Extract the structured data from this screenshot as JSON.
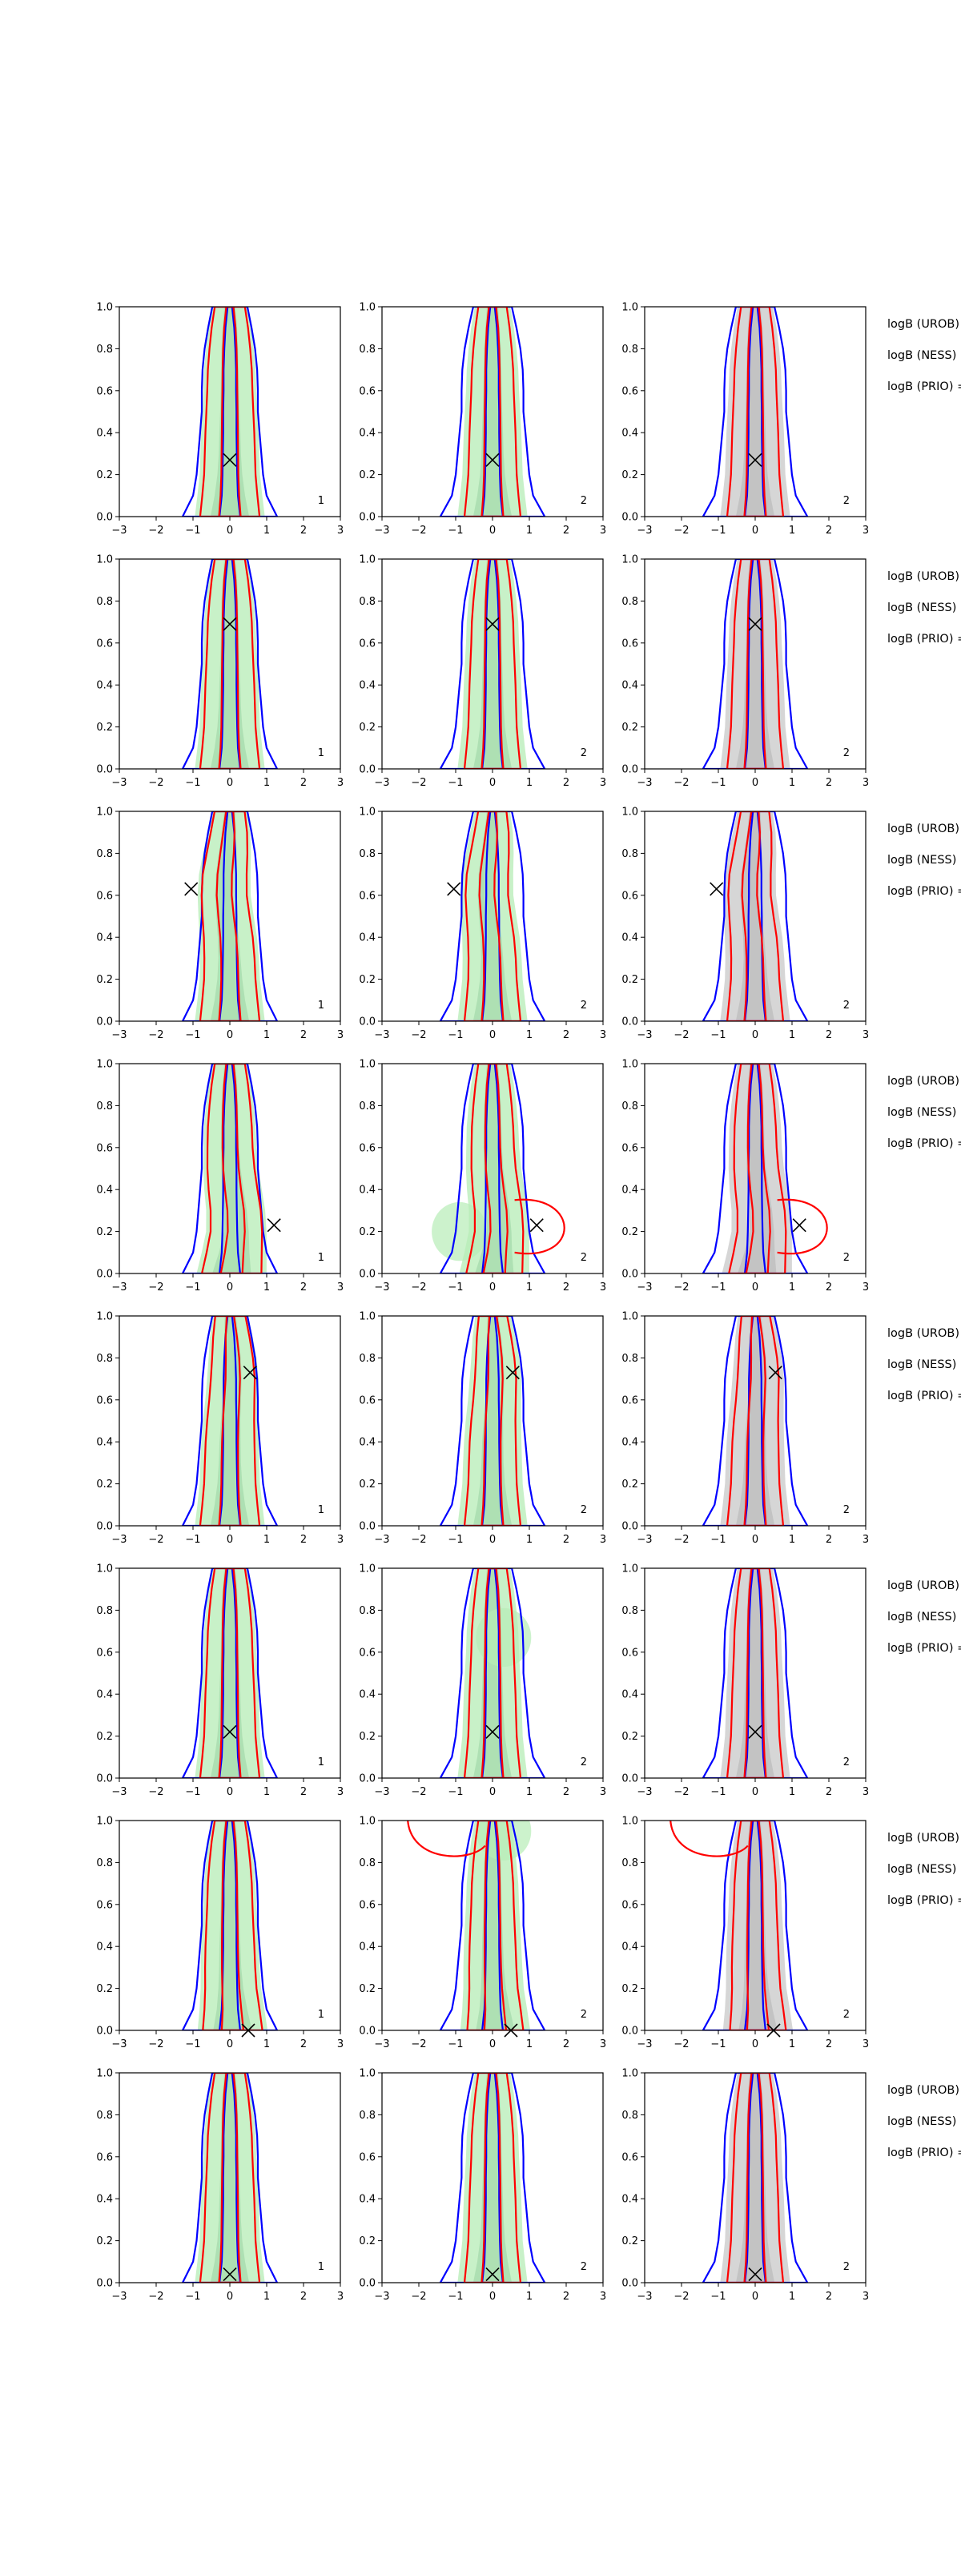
{
  "chart_data": {
    "type": "contour",
    "xlim": [
      -3,
      3
    ],
    "ylim": [
      0,
      1
    ],
    "x_ticks": [
      "−3",
      "−2",
      "−1",
      "0",
      "1",
      "2",
      "3"
    ],
    "y_ticks": [
      "0.0",
      "0.2",
      "0.4",
      "0.6",
      "0.8",
      "1.0"
    ],
    "grid": false,
    "colors": {
      "green_fill": "#b6ecb6",
      "gray_fill": "#c8c8c8",
      "blue_contour": "#0000ff",
      "red_contour": "#ff0000",
      "marker": "#000000"
    },
    "side_labels": [
      "logB (UROB) =",
      "logB (NESS) =",
      "logB (PRIO) ="
    ],
    "rows": [
      {
        "marker": [
          0.0,
          0.27
        ],
        "corner_labels": [
          "1",
          "2",
          "2"
        ]
      },
      {
        "marker": [
          0.0,
          0.69
        ],
        "corner_labels": [
          "1",
          "2",
          "2"
        ]
      },
      {
        "marker": [
          -1.05,
          0.63
        ],
        "corner_labels": [
          "1",
          "2",
          "2"
        ]
      },
      {
        "marker": [
          1.2,
          0.23
        ],
        "corner_labels": [
          "1",
          "2",
          "2"
        ]
      },
      {
        "marker": [
          0.55,
          0.73
        ],
        "corner_labels": [
          "1",
          "2",
          "2"
        ]
      },
      {
        "marker": [
          0.0,
          0.22
        ],
        "corner_labels": [
          "1",
          "2",
          "2"
        ]
      },
      {
        "marker": [
          0.5,
          0.0
        ],
        "corner_labels": [
          "1",
          "2",
          "2"
        ]
      },
      {
        "marker": [
          0.0,
          0.04
        ],
        "corner_labels": [
          "1",
          "2",
          "2"
        ]
      }
    ]
  }
}
